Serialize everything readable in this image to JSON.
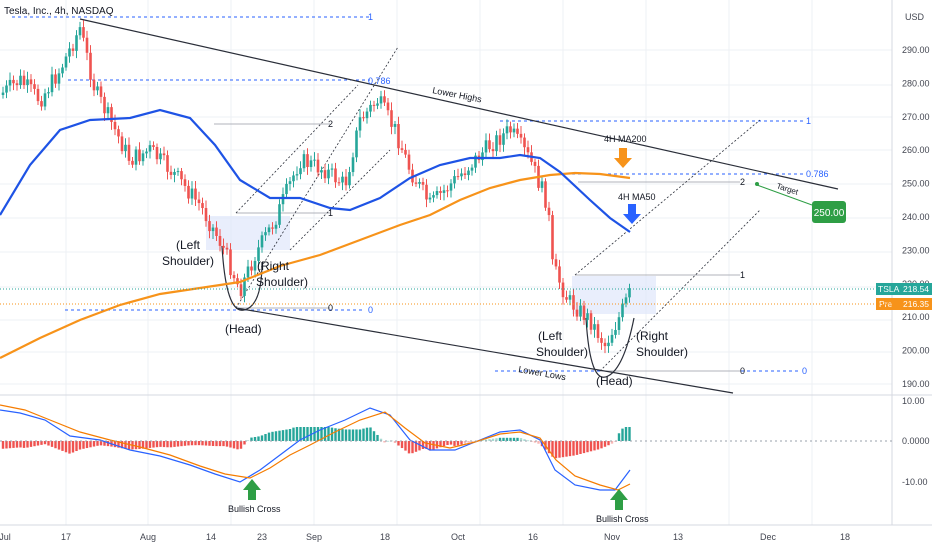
{
  "header": {
    "title": "Tesla, Inc., 4h, NASDAQ"
  },
  "currency": "USD",
  "price_tags": [
    {
      "symbol": "TSLA",
      "price": "218.54",
      "color": "#26a69a"
    },
    {
      "symbol": "Pre",
      "price": "216.35",
      "color": "#f7931a"
    }
  ],
  "colors": {
    "up": "#26a69a",
    "down": "#ef5350",
    "ma50": "#1e53e5",
    "ma200": "#f7931a",
    "macd": "#2962ff",
    "signal": "#f57c00",
    "fib": "#2962ff",
    "target": "#2e9e45"
  },
  "chart_data": {
    "type": "candlestick",
    "price_axis": {
      "range": [
        185,
        300
      ],
      "ticks": [
        190,
        200,
        210,
        220,
        230,
        240,
        250,
        260,
        270,
        280,
        290
      ]
    },
    "macd_axis": {
      "range": [
        -18,
        11
      ],
      "ticks": [
        "10.00",
        "0.0000",
        "-10.00"
      ]
    },
    "time_axis": [
      "Jul",
      "17",
      "Aug",
      "14",
      "23",
      "Sep",
      "18",
      "Oct",
      "16",
      "Nov",
      "13",
      "Dec",
      "18"
    ],
    "series": [
      {
        "name": "4H MA50",
        "type": "line",
        "color": "#1e53e5"
      },
      {
        "name": "4H MA200",
        "type": "line",
        "color": "#f7931a"
      }
    ],
    "annotations": {
      "lower_highs": "Lower Highs",
      "lower_lows": "Lower Lows",
      "left_shoulder_1": [
        "(Left",
        "Shoulder)"
      ],
      "right_shoulder_1": [
        "(Right",
        "Shoulder)"
      ],
      "head_1": "(Head)",
      "left_shoulder_2": [
        "(Left",
        "Shoulder)"
      ],
      "right_shoulder_2": [
        "(Right",
        "Shoulder)"
      ],
      "head_2": "(Head)",
      "ma200_label": "4H MA200",
      "ma50_label": "4H MA50",
      "target_label": "Target",
      "target_value": "250.00",
      "bullish_cross_1": "Bullish Cross",
      "bullish_cross_2": "Bullish Cross"
    },
    "fib_levels": [
      {
        "label": "1",
        "price": 296
      },
      {
        "label": "0.786",
        "price": 281
      },
      {
        "label": "1",
        "price": 269
      },
      {
        "label": "0.786",
        "price": 253
      },
      {
        "label": "0",
        "price": 212
      },
      {
        "label": "0",
        "price": 195
      }
    ],
    "channel_labels": [
      "2",
      "1",
      "0",
      "2",
      "1",
      "0"
    ]
  }
}
